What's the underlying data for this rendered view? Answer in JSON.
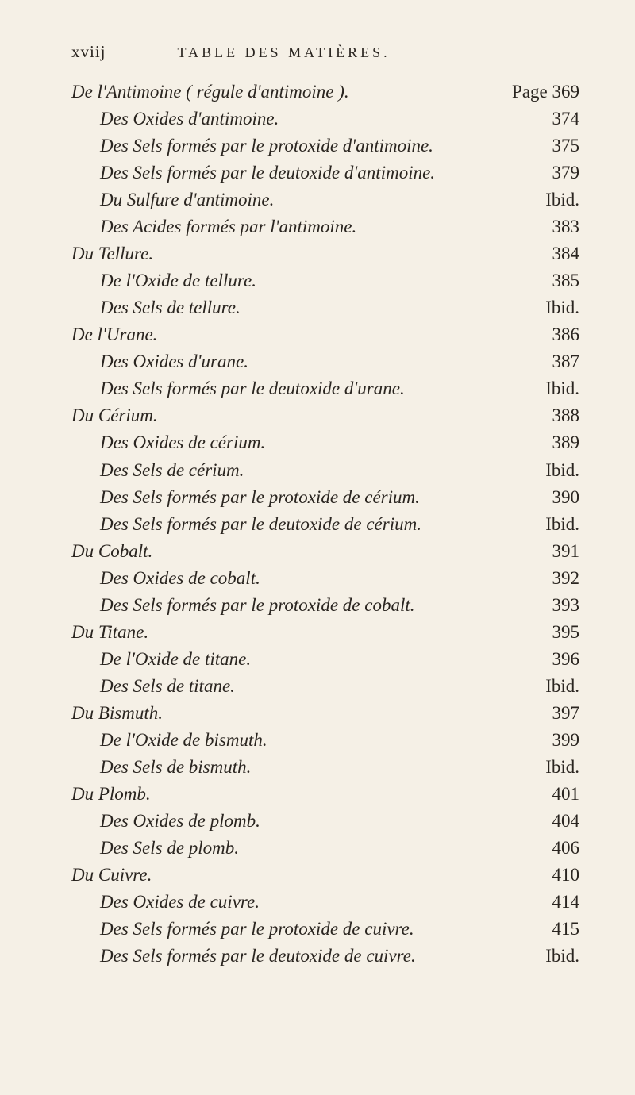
{
  "header": {
    "roman": "xviij",
    "title": "TABLE DES MATIÈRES."
  },
  "entries": [
    {
      "level": 0,
      "text": "De l'Antimoine ( régule d'antimoine ).",
      "page": "Page 369"
    },
    {
      "level": 1,
      "text": "Des Oxides d'antimoine.",
      "page": "374"
    },
    {
      "level": 1,
      "text": "Des Sels formés par le protoxide d'antimoine.",
      "page": "375"
    },
    {
      "level": 1,
      "text": "Des Sels formés par le deutoxide d'antimoine.",
      "page": "379"
    },
    {
      "level": 1,
      "text": "Du Sulfure d'antimoine.",
      "page": "Ibid."
    },
    {
      "level": 1,
      "text": "Des Acides formés par l'antimoine.",
      "page": "383"
    },
    {
      "level": 0,
      "text": "Du Tellure.",
      "page": "384"
    },
    {
      "level": 1,
      "text": "De l'Oxide de tellure.",
      "page": "385"
    },
    {
      "level": 1,
      "text": "Des Sels de tellure.",
      "page": "Ibid."
    },
    {
      "level": 0,
      "text": "De l'Urane.",
      "page": "386"
    },
    {
      "level": 1,
      "text": "Des Oxides d'urane.",
      "page": "387"
    },
    {
      "level": 1,
      "text": "Des Sels formés par le deutoxide d'urane.",
      "page": "Ibid."
    },
    {
      "level": 0,
      "text": "Du Cérium.",
      "page": "388"
    },
    {
      "level": 1,
      "text": "Des Oxides de cérium.",
      "page": "389"
    },
    {
      "level": 1,
      "text": "Des Sels de cérium.",
      "page": "Ibid."
    },
    {
      "level": 1,
      "text": "Des Sels formés par le protoxide de cérium.",
      "page": "390"
    },
    {
      "level": 1,
      "text": "Des Sels formés par le deutoxide de cérium.",
      "page": "Ibid."
    },
    {
      "level": 0,
      "text": "Du Cobalt.",
      "page": "391"
    },
    {
      "level": 1,
      "text": "Des Oxides de cobalt.",
      "page": "392"
    },
    {
      "level": 1,
      "text": "Des Sels formés par le protoxide de cobalt.",
      "page": "393"
    },
    {
      "level": 0,
      "text": "Du Titane.",
      "page": "395"
    },
    {
      "level": 1,
      "text": "De l'Oxide de titane.",
      "page": "396"
    },
    {
      "level": 1,
      "text": "Des Sels de titane.",
      "page": "Ibid."
    },
    {
      "level": 0,
      "text": "Du Bismuth.",
      "page": "397"
    },
    {
      "level": 1,
      "text": "De l'Oxide de bismuth.",
      "page": "399"
    },
    {
      "level": 1,
      "text": "Des Sels de bismuth.",
      "page": "Ibid."
    },
    {
      "level": 0,
      "text": "Du Plomb.",
      "page": "401"
    },
    {
      "level": 1,
      "text": "Des Oxides de plomb.",
      "page": "404"
    },
    {
      "level": 1,
      "text": "Des Sels de plomb.",
      "page": "406"
    },
    {
      "level": 0,
      "text": "Du Cuivre.",
      "page": "410"
    },
    {
      "level": 1,
      "text": "Des Oxides de cuivre.",
      "page": "414"
    },
    {
      "level": 1,
      "text": "Des Sels formés par le protoxide de cuivre.",
      "page": "415"
    },
    {
      "level": 1,
      "text": "Des Sels formés par le deutoxide de cuivre.",
      "page": "Ibid."
    }
  ]
}
